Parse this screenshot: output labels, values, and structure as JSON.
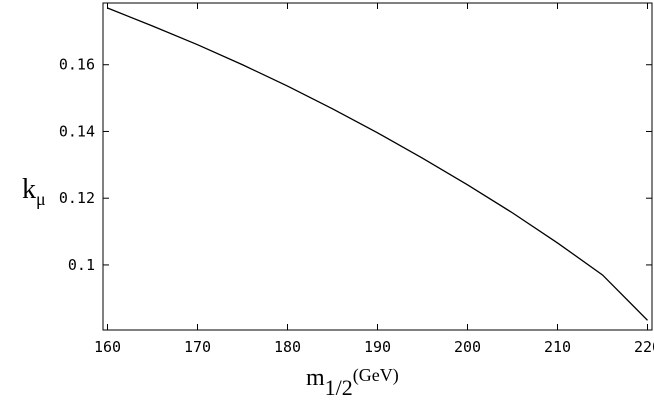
{
  "chart_data": {
    "type": "line",
    "title": "",
    "xlabel_main": "m",
    "xlabel_sub": "1/2",
    "xlabel_unit": "(GeV)",
    "ylabel_main": "k",
    "ylabel_sub": "μ",
    "xlim": [
      159.5,
      220.5
    ],
    "ylim": [
      0.0805,
      0.1785
    ],
    "x_ticks": [
      160,
      170,
      180,
      190,
      200,
      210,
      220
    ],
    "x_tick_labels": [
      "160",
      "170",
      "180",
      "190",
      "200",
      "210",
      "220"
    ],
    "y_ticks": [
      0.1,
      0.12,
      0.14,
      0.16
    ],
    "y_tick_labels": [
      "0.1",
      "0.12",
      "0.14",
      "0.16"
    ],
    "grid": false,
    "series": [
      {
        "x": [
          160,
          165,
          170,
          175,
          180,
          185,
          190,
          195,
          200,
          205,
          210,
          215,
          220
        ],
        "y": [
          0.177,
          0.1716,
          0.166,
          0.16,
          0.1536,
          0.1468,
          0.1396,
          0.132,
          0.124,
          0.1156,
          0.1066,
          0.097,
          0.0834
        ]
      }
    ]
  }
}
